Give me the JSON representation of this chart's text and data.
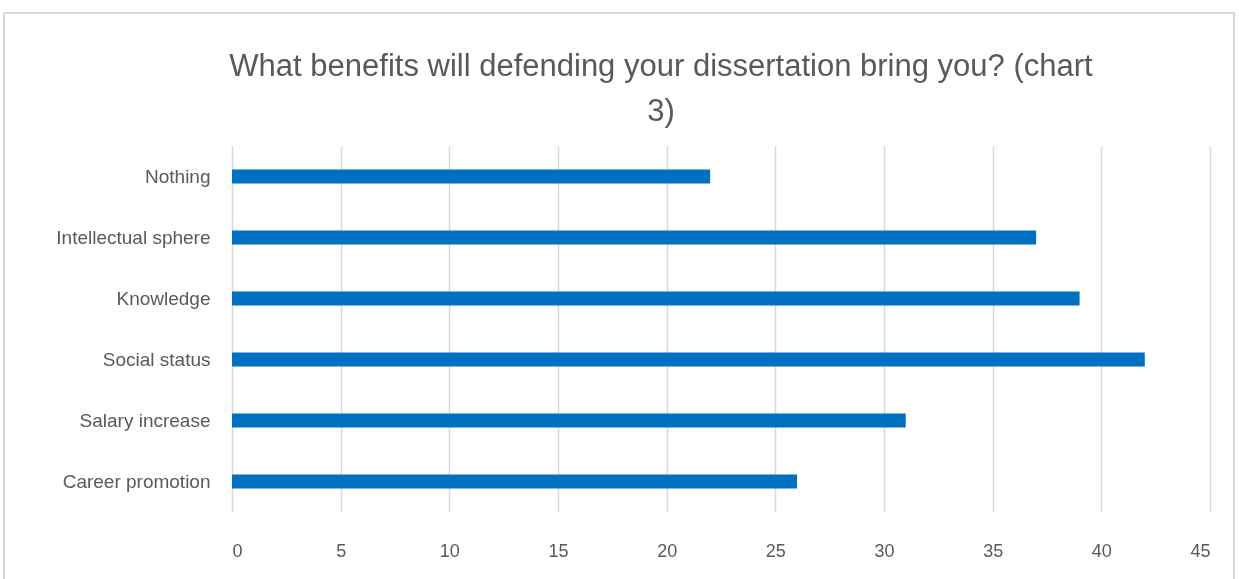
{
  "chart_data": {
    "type": "bar",
    "title": "What benefits will defending your dissertation bring you? (chart 3)",
    "orientation": "horizontal",
    "categories": [
      "Nothing",
      "Intellectual sphere",
      "Knowledge",
      "Social status",
      "Salary increase",
      "Career promotion"
    ],
    "values": [
      22,
      37,
      39,
      42,
      31,
      26
    ],
    "color": "#0070c0",
    "xlim": [
      0,
      45
    ],
    "xticks": [
      0,
      5,
      10,
      15,
      20,
      25,
      30,
      35,
      40,
      45
    ],
    "grid": "x"
  }
}
